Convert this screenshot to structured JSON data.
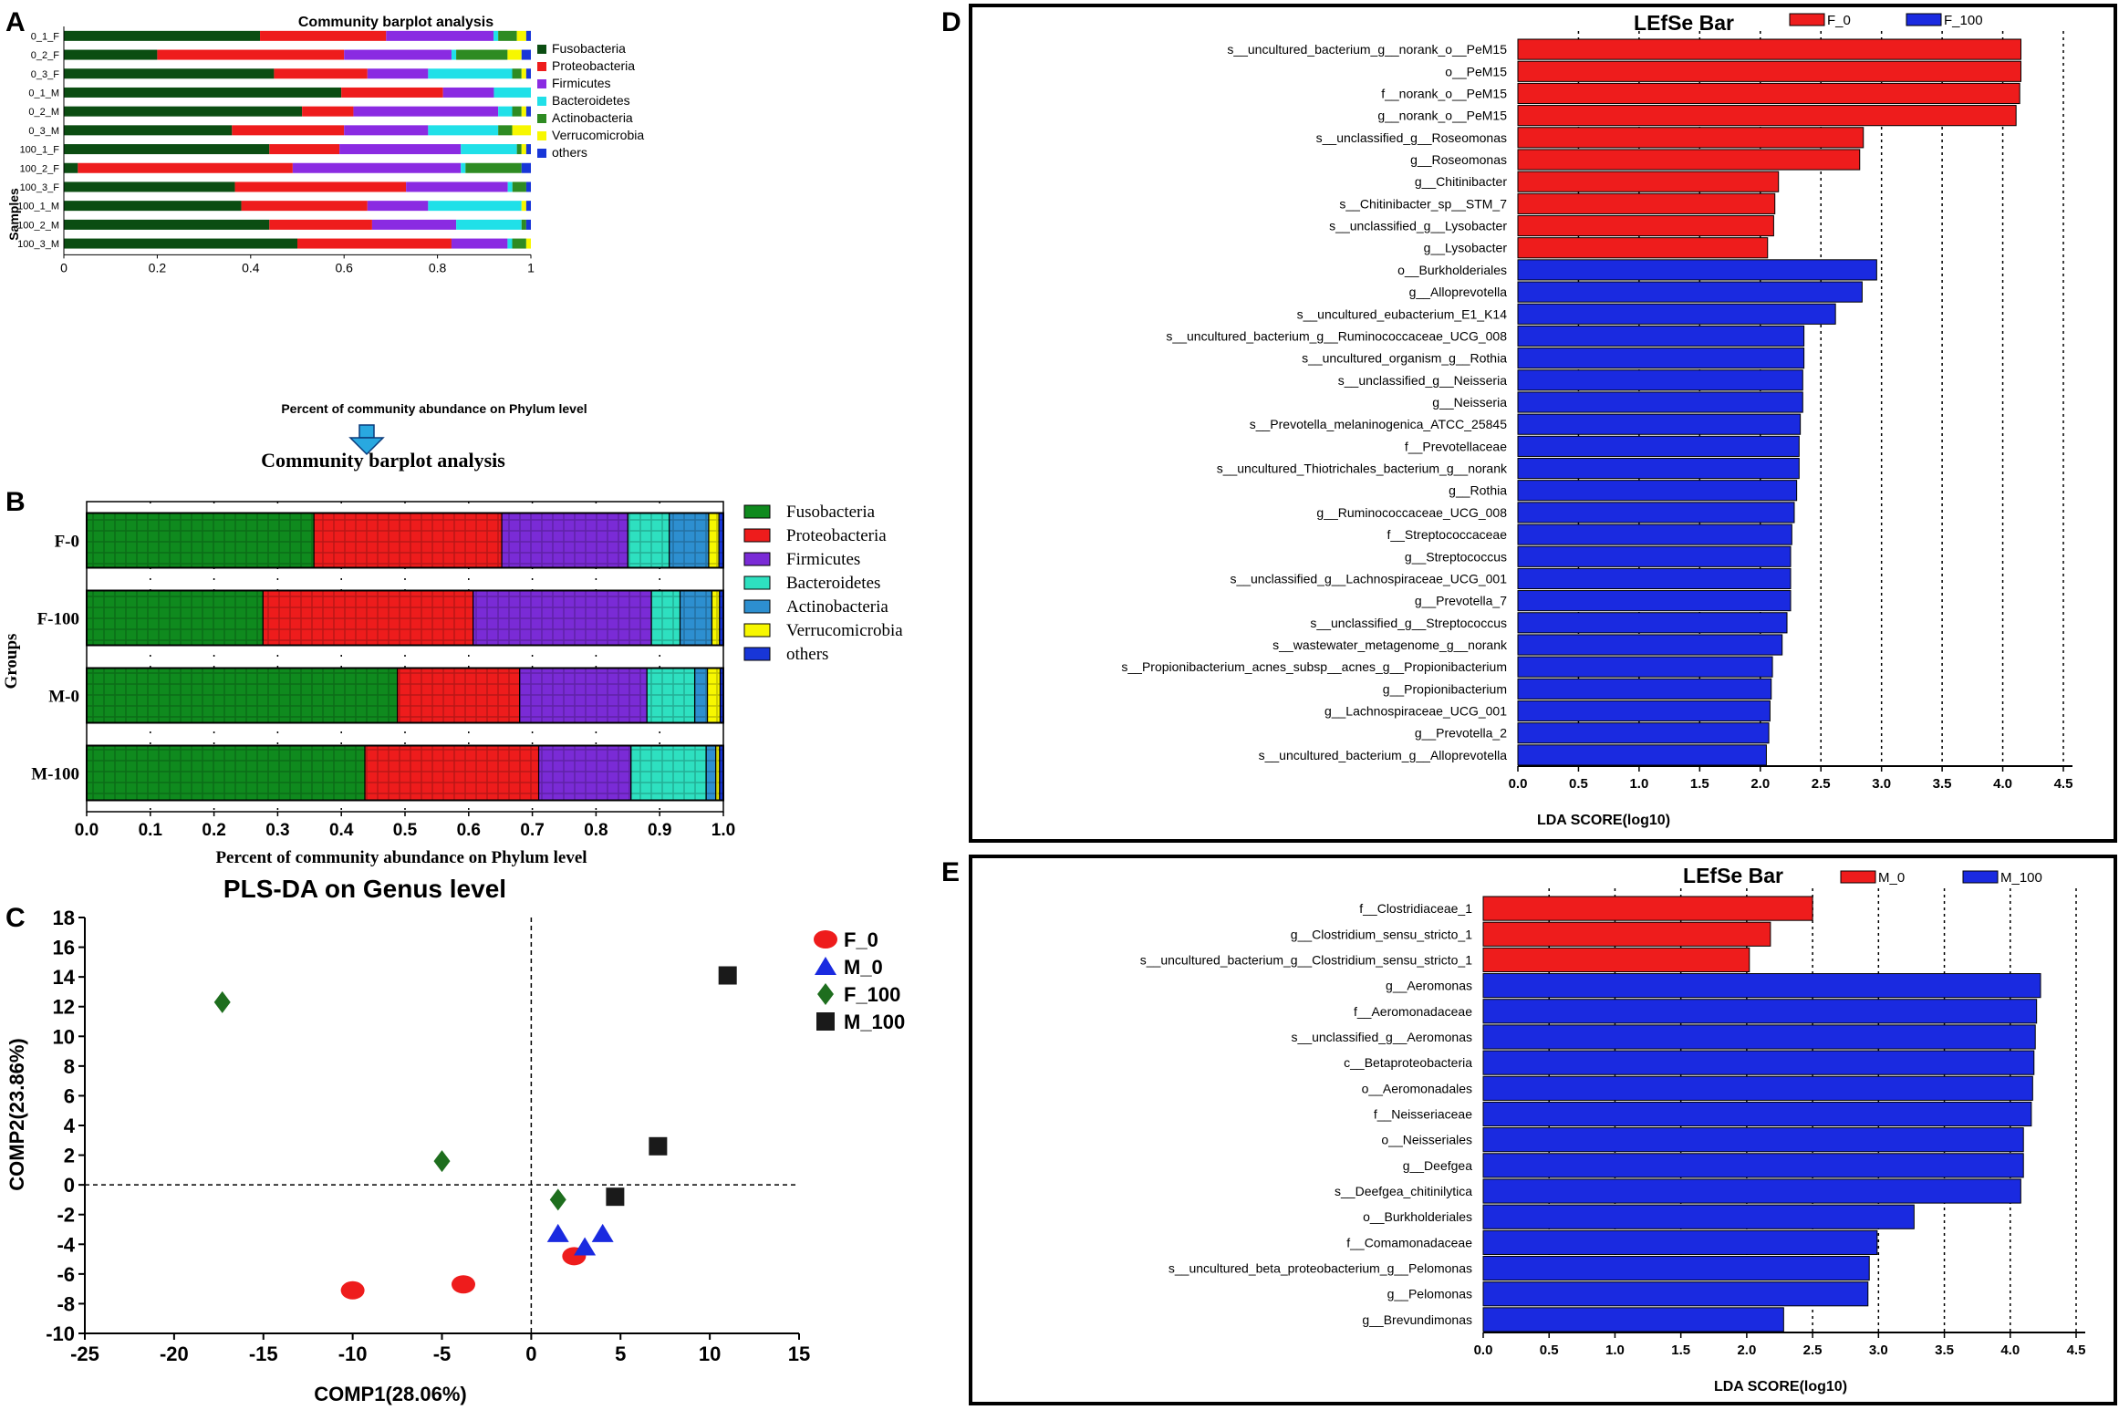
{
  "figure": {
    "panel_letters": [
      "A",
      "B",
      "C",
      "D",
      "E"
    ],
    "arrow_color": "#29a8e0"
  },
  "colors": {
    "Fusobacteria": "#0b4d12",
    "Proteobacteria": "#ee1c1c",
    "Firmicutes": "#8a2be2",
    "Bacteroidetes": "#20e0e8",
    "Actinobacteria": "#2e8b22",
    "Verrucomicrobia": "#f7f700",
    "others": "#1836d8",
    "B_Fusobacteria": "#0f8a1e",
    "B_Proteobacteria": "#ee1c1c",
    "B_Firmicutes": "#7a2bd6",
    "B_Bacteroidetes": "#2ee0c0",
    "B_Actinobacteria": "#2d8fd0",
    "B_Verrucomicrobia": "#f7f700",
    "B_others": "#1836d8",
    "lefse_a": "#ee1c1c",
    "lefse_b": "#1a2ae0",
    "F_0": "#ee1c1c",
    "M_0": "#1a2ae0",
    "F_100": "#1e6e1e",
    "M_100": "#1a1a1a"
  },
  "chart_data": [
    {
      "panel": "A",
      "type": "bar",
      "stacked": true,
      "orientation": "horizontal",
      "title": "Community barplot analysis",
      "xlabel": "Percent of community abundance on Phylum level",
      "ylabel": "Samples",
      "xlim": [
        0,
        1
      ],
      "xticks": [
        "0",
        "0.2",
        "0.4",
        "0.6",
        "0.8",
        "1"
      ],
      "categories": [
        "0_1_F",
        "0_2_F",
        "0_3_F",
        "0_1_M",
        "0_2_M",
        "0_3_M",
        "100_1_F",
        "100_2_F",
        "100_3_F",
        "100_1_M",
        "100_2_M",
        "100_3_M"
      ],
      "legend": [
        "Fusobacteria",
        "Proteobacteria",
        "Firmicutes",
        "Bacteroidetes",
        "Actinobacteria",
        "Verrucomicrobia",
        "others"
      ],
      "series": [
        {
          "name": "Fusobacteria",
          "values": [
            0.42,
            0.2,
            0.45,
            0.6,
            0.51,
            0.36,
            0.44,
            0.03,
            0.37,
            0.38,
            0.44,
            0.5
          ]
        },
        {
          "name": "Proteobacteria",
          "values": [
            0.27,
            0.4,
            0.2,
            0.22,
            0.11,
            0.24,
            0.15,
            0.46,
            0.37,
            0.27,
            0.22,
            0.33
          ]
        },
        {
          "name": "Firmicutes",
          "values": [
            0.23,
            0.23,
            0.13,
            0.11,
            0.31,
            0.18,
            0.26,
            0.36,
            0.22,
            0.13,
            0.18,
            0.12
          ]
        },
        {
          "name": "Bacteroidetes",
          "values": [
            0.01,
            0.01,
            0.18,
            0.08,
            0.03,
            0.15,
            0.12,
            0.01,
            0.01,
            0.2,
            0.14,
            0.01
          ]
        },
        {
          "name": "Actinobacteria",
          "values": [
            0.04,
            0.11,
            0.02,
            0.0,
            0.02,
            0.03,
            0.01,
            0.12,
            0.03,
            0.0,
            0.01,
            0.03
          ]
        },
        {
          "name": "Verrucomicrobia",
          "values": [
            0.02,
            0.03,
            0.01,
            0.0,
            0.01,
            0.04,
            0.01,
            0.0,
            0.0,
            0.01,
            0.0,
            0.01
          ]
        },
        {
          "name": "others",
          "values": [
            0.01,
            0.02,
            0.01,
            0.0,
            0.01,
            0.0,
            0.01,
            0.02,
            0.01,
            0.01,
            0.01,
            0.0
          ]
        }
      ]
    },
    {
      "panel": "B",
      "type": "bar",
      "stacked": true,
      "orientation": "horizontal",
      "title": "Community barplot analysis",
      "xlabel": "Percent of community abundance on Phylum level",
      "ylabel": "Groups",
      "xlim": [
        0,
        1
      ],
      "xticks": [
        "0.0",
        "0.1",
        "0.2",
        "0.3",
        "0.4",
        "0.5",
        "0.6",
        "0.7",
        "0.8",
        "0.9",
        "1.0"
      ],
      "categories": [
        "F-0",
        "F-100",
        "M-0",
        "M-100"
      ],
      "legend": [
        "Fusobacteria",
        "Proteobacteria",
        "Firmicutes",
        "Bacteroidetes",
        "Actinobacteria",
        "Verrucomicrobia",
        "others"
      ],
      "series": [
        {
          "name": "Fusobacteria",
          "values": [
            0.357,
            0.277,
            0.488,
            0.437
          ]
        },
        {
          "name": "Proteobacteria",
          "values": [
            0.295,
            0.33,
            0.192,
            0.273
          ]
        },
        {
          "name": "Firmicutes",
          "values": [
            0.198,
            0.28,
            0.2,
            0.145
          ]
        },
        {
          "name": "Bacteroidetes",
          "values": [
            0.065,
            0.045,
            0.075,
            0.118
          ]
        },
        {
          "name": "Actinobacteria",
          "values": [
            0.062,
            0.05,
            0.02,
            0.015
          ]
        },
        {
          "name": "Verrucomicrobia",
          "values": [
            0.016,
            0.012,
            0.02,
            0.006
          ]
        },
        {
          "name": "others",
          "values": [
            0.007,
            0.006,
            0.005,
            0.006
          ]
        }
      ]
    },
    {
      "panel": "C",
      "type": "scatter",
      "title": "PLS-DA on Genus level",
      "xlabel": "COMP1(28.06%)",
      "ylabel": "COMP2(23.86%)",
      "xlim": [
        -25,
        15
      ],
      "ylim": [
        -10,
        18
      ],
      "xticks": [
        "-25",
        "-20",
        "-15",
        "-10",
        "-5",
        "0",
        "5",
        "10",
        "15"
      ],
      "yticks": [
        "18",
        "16",
        "14",
        "12",
        "10",
        "8",
        "6",
        "4",
        "2",
        "0",
        "-2",
        "-4",
        "-6",
        "-8",
        "-10"
      ],
      "series": [
        {
          "name": "F_0",
          "marker": "circle",
          "x": [
            -10.0,
            -3.8,
            2.4
          ],
          "y": [
            -7.1,
            -6.7,
            -4.8
          ]
        },
        {
          "name": "M_0",
          "marker": "triangle",
          "x": [
            1.5,
            3.0,
            4.0
          ],
          "y": [
            -3.3,
            -4.2,
            -3.3
          ]
        },
        {
          "name": "F_100",
          "marker": "diamond",
          "x": [
            -17.3,
            -5.0,
            1.5
          ],
          "y": [
            12.3,
            1.6,
            -1.0
          ]
        },
        {
          "name": "M_100",
          "marker": "square",
          "x": [
            11.0,
            7.1,
            4.7
          ],
          "y": [
            14.1,
            2.6,
            -0.8
          ]
        }
      ]
    },
    {
      "panel": "D",
      "type": "bar",
      "orientation": "horizontal",
      "title": "LEfSe Bar",
      "xlabel": "LDA SCORE(log10)",
      "xlim": [
        0,
        4.5
      ],
      "xticks": [
        "0.0",
        "0.5",
        "1.0",
        "1.5",
        "2.0",
        "2.5",
        "3.0",
        "3.5",
        "4.0",
        "4.5"
      ],
      "legend": [
        "F_0",
        "F_100"
      ],
      "categories": [
        "s__uncultured_bacterium_g__norank_o__PeM15",
        "o__PeM15",
        "f__norank_o__PeM15",
        "g__norank_o__PeM15",
        "s__unclassified_g__Roseomonas",
        "g__Roseomonas",
        "g__Chitinibacter",
        "s__Chitinibacter_sp__STM_7",
        "s__unclassified_g__Lysobacter",
        "g__Lysobacter",
        "o__Burkholderiales",
        "g__Alloprevotella",
        "s__uncultured_eubacterium_E1_K14",
        "s__uncultured_bacterium_g__Ruminococcaceae_UCG_008",
        "s__uncultured_organism_g__Rothia",
        "s__unclassified_g__Neisseria",
        "g__Neisseria",
        "s__Prevotella_melaninogenica_ATCC_25845",
        "f__Prevotellaceae",
        "s__uncultured_Thiotrichales_bacterium_g__norank",
        "g__Rothia",
        "g__Ruminococcaceae_UCG_008",
        "f__Streptococcaceae",
        "g__Streptococcus",
        "s__unclassified_g__Lachnospiraceae_UCG_001",
        "g__Prevotella_7",
        "s__unclassified_g__Streptococcus",
        "s__wastewater_metagenome_g__norank",
        "s__Propionibacterium_acnes_subsp__acnes_g__Propionibacterium",
        "g__Propionibacterium",
        "g__Lachnospiraceae_UCG_001",
        "g__Prevotella_2",
        "s__uncultured_bacterium_g__Alloprevotella"
      ],
      "values": [
        4.15,
        4.15,
        4.14,
        4.11,
        2.85,
        2.82,
        2.15,
        2.12,
        2.11,
        2.06,
        2.96,
        2.84,
        2.62,
        2.36,
        2.36,
        2.35,
        2.35,
        2.33,
        2.32,
        2.32,
        2.3,
        2.28,
        2.26,
        2.25,
        2.25,
        2.25,
        2.22,
        2.18,
        2.1,
        2.09,
        2.08,
        2.07,
        2.05
      ],
      "groups": [
        "F_0",
        "F_0",
        "F_0",
        "F_0",
        "F_0",
        "F_0",
        "F_0",
        "F_0",
        "F_0",
        "F_0",
        "F_100",
        "F_100",
        "F_100",
        "F_100",
        "F_100",
        "F_100",
        "F_100",
        "F_100",
        "F_100",
        "F_100",
        "F_100",
        "F_100",
        "F_100",
        "F_100",
        "F_100",
        "F_100",
        "F_100",
        "F_100",
        "F_100",
        "F_100",
        "F_100",
        "F_100",
        "F_100"
      ]
    },
    {
      "panel": "E",
      "type": "bar",
      "orientation": "horizontal",
      "title": "LEfSe Bar",
      "xlabel": "LDA SCORE(log10)",
      "xlim": [
        0,
        4.5
      ],
      "xticks": [
        "0.0",
        "0.5",
        "1.0",
        "1.5",
        "2.0",
        "2.5",
        "3.0",
        "3.5",
        "4.0",
        "4.5"
      ],
      "legend": [
        "M_0",
        "M_100"
      ],
      "categories": [
        "f__Clostridiaceae_1",
        "g__Clostridium_sensu_stricto_1",
        "s__uncultured_bacterium_g__Clostridium_sensu_stricto_1",
        "g__Aeromonas",
        "f__Aeromonadaceae",
        "s__unclassified_g__Aeromonas",
        "c__Betaproteobacteria",
        "o__Aeromonadales",
        "f__Neisseriaceae",
        "o__Neisseriales",
        "g__Deefgea",
        "s__Deefgea_chitinilytica",
        "o__Burkholderiales",
        "f__Comamonadaceae",
        "s__uncultured_beta_proteobacterium_g__Pelomonas",
        "g__Pelomonas",
        "g__Brevundimonas"
      ],
      "values": [
        2.5,
        2.18,
        2.02,
        4.23,
        4.2,
        4.19,
        4.18,
        4.17,
        4.16,
        4.1,
        4.1,
        4.08,
        3.27,
        2.99,
        2.93,
        2.92,
        2.28
      ],
      "groups": [
        "M_0",
        "M_0",
        "M_0",
        "M_100",
        "M_100",
        "M_100",
        "M_100",
        "M_100",
        "M_100",
        "M_100",
        "M_100",
        "M_100",
        "M_100",
        "M_100",
        "M_100",
        "M_100",
        "M_100"
      ]
    }
  ]
}
